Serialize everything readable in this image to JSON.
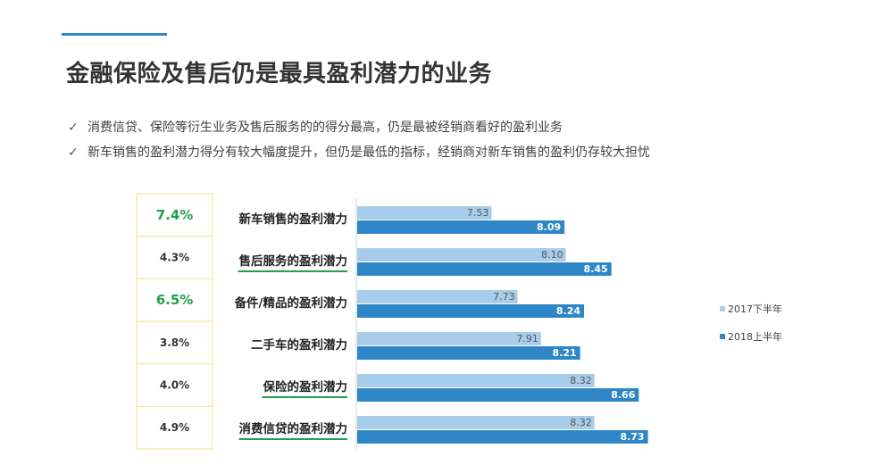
{
  "header": {
    "title": "金融保险及售后仍是最具盈利潜力的业务"
  },
  "bullets": [
    {
      "icon": "check-icon",
      "mark": "✓",
      "text": "消费信贷、保险等衍生业务及售后服务的的得分最高，仍是最被经销商看好的盈利业务"
    },
    {
      "icon": "check-icon",
      "mark": "✓",
      "text": "新车销售的盈利潜力得分有较大幅度提升，但仍是最低的指标，经销商对新车销售的盈利仍存较大担忧"
    }
  ],
  "colors": {
    "series_2017": "#a8cdea",
    "series_2018": "#2e86c6",
    "highlight_pct": "#22a04a",
    "underline": "#22a04a",
    "pct_box_border": "#f0e28a",
    "top_rule": "#2e86c6"
  },
  "chart_data": {
    "type": "bar",
    "orientation": "horizontal",
    "categories": [
      "新车销售的盈利潜力",
      "售后服务的盈利潜力",
      "备件/精品的盈利潜力",
      "二手车的盈利潜力",
      "保险的盈利潜力",
      "消费信贷的盈利潜力"
    ],
    "series": [
      {
        "name": "2017下半年",
        "values": [
          7.53,
          8.1,
          7.73,
          7.91,
          8.32,
          8.32
        ],
        "labels": [
          "7.53",
          "8.10",
          "7.73",
          "7.91",
          "8.32",
          "8.32"
        ]
      },
      {
        "name": "2018上半年",
        "values": [
          8.09,
          8.45,
          8.24,
          8.21,
          8.66,
          8.73
        ],
        "labels": [
          "8.09",
          "8.45",
          "8.24",
          "8.21",
          "8.66",
          "8.73"
        ]
      }
    ],
    "growth": [
      "7.4%",
      "4.3%",
      "6.5%",
      "3.8%",
      "4.0%",
      "4.9%"
    ],
    "growth_highlighted": [
      true,
      false,
      true,
      false,
      false,
      false
    ],
    "category_underlined": [
      false,
      true,
      false,
      false,
      true,
      true
    ],
    "axis_min": 6.5,
    "axis_max": 9.1,
    "legend_position": "right",
    "grid": false
  }
}
